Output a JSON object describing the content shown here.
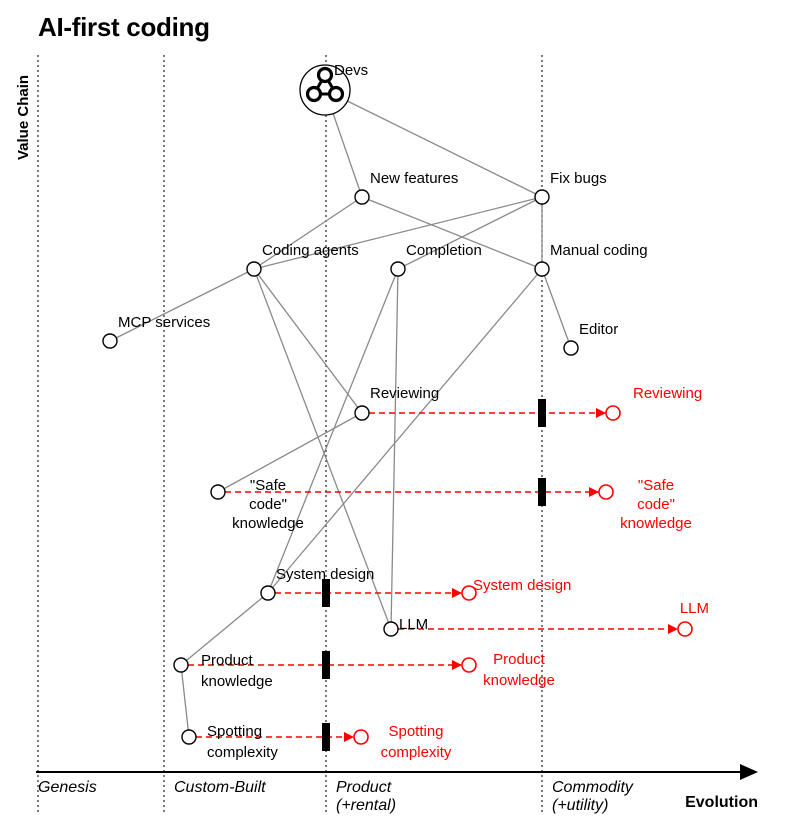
{
  "title": "AI-first coding",
  "axes": {
    "y_label": "Value Chain",
    "x_label": "Evolution",
    "stages": [
      "Genesis",
      "Custom-Built",
      "Product",
      "(+rental)",
      "Commodity",
      "(+utility)"
    ]
  },
  "colors": {
    "ink": "#000000",
    "link": "#8a8a8a",
    "movement": "#ff0000",
    "guide": "#333333"
  },
  "anchor": {
    "label": "Devs",
    "icon": "user-group-icon"
  },
  "components": [
    {
      "id": "new_features",
      "label": "New features"
    },
    {
      "id": "fix_bugs",
      "label": "Fix bugs"
    },
    {
      "id": "coding_agents",
      "label": "Coding agents"
    },
    {
      "id": "completion",
      "label": "Completion"
    },
    {
      "id": "manual_coding",
      "label": "Manual coding"
    },
    {
      "id": "mcp_services",
      "label": "MCP services"
    },
    {
      "id": "editor",
      "label": "Editor"
    },
    {
      "id": "reviewing",
      "label": "Reviewing"
    },
    {
      "id": "safe_code",
      "label": "\"Safe code\" knowledge",
      "lines": [
        "\"Safe",
        "code\"",
        "knowledge"
      ]
    },
    {
      "id": "system_design",
      "label": "System design"
    },
    {
      "id": "llm",
      "label": "LLM"
    },
    {
      "id": "product_knowledge",
      "label": "Product knowledge",
      "lines": [
        "Product",
        "knowledge"
      ]
    },
    {
      "id": "spotting_complexity",
      "label": "Spotting complexity",
      "lines": [
        "Spotting",
        "complexity"
      ]
    }
  ],
  "evolved": [
    {
      "from": "reviewing",
      "label": "Reviewing",
      "lines": [
        "Reviewing"
      ]
    },
    {
      "from": "safe_code",
      "label": "\"Safe code\" knowledge",
      "lines": [
        "\"Safe",
        "code\"",
        "knowledge"
      ]
    },
    {
      "from": "system_design",
      "label": "System design",
      "lines": [
        "System design"
      ]
    },
    {
      "from": "llm",
      "label": "LLM",
      "lines": [
        "LLM"
      ]
    },
    {
      "from": "product_knowledge",
      "label": "Product knowledge",
      "lines": [
        "Product",
        "knowledge"
      ]
    },
    {
      "from": "spotting_complexity",
      "label": "Spotting complexity",
      "lines": [
        "Spotting",
        "complexity"
      ]
    }
  ],
  "links": [
    [
      "devs",
      "new_features"
    ],
    [
      "devs",
      "fix_bugs"
    ],
    [
      "new_features",
      "coding_agents"
    ],
    [
      "new_features",
      "manual_coding"
    ],
    [
      "fix_bugs",
      "coding_agents"
    ],
    [
      "fix_bugs",
      "completion"
    ],
    [
      "fix_bugs",
      "manual_coding"
    ],
    [
      "coding_agents",
      "mcp_services"
    ],
    [
      "coding_agents",
      "reviewing"
    ],
    [
      "coding_agents",
      "llm"
    ],
    [
      "completion",
      "llm"
    ],
    [
      "completion",
      "system_design"
    ],
    [
      "manual_coding",
      "editor"
    ],
    [
      "manual_coding",
      "system_design"
    ],
    [
      "reviewing",
      "safe_code"
    ],
    [
      "system_design",
      "product_knowledge"
    ],
    [
      "product_knowledge",
      "spotting_complexity"
    ]
  ]
}
